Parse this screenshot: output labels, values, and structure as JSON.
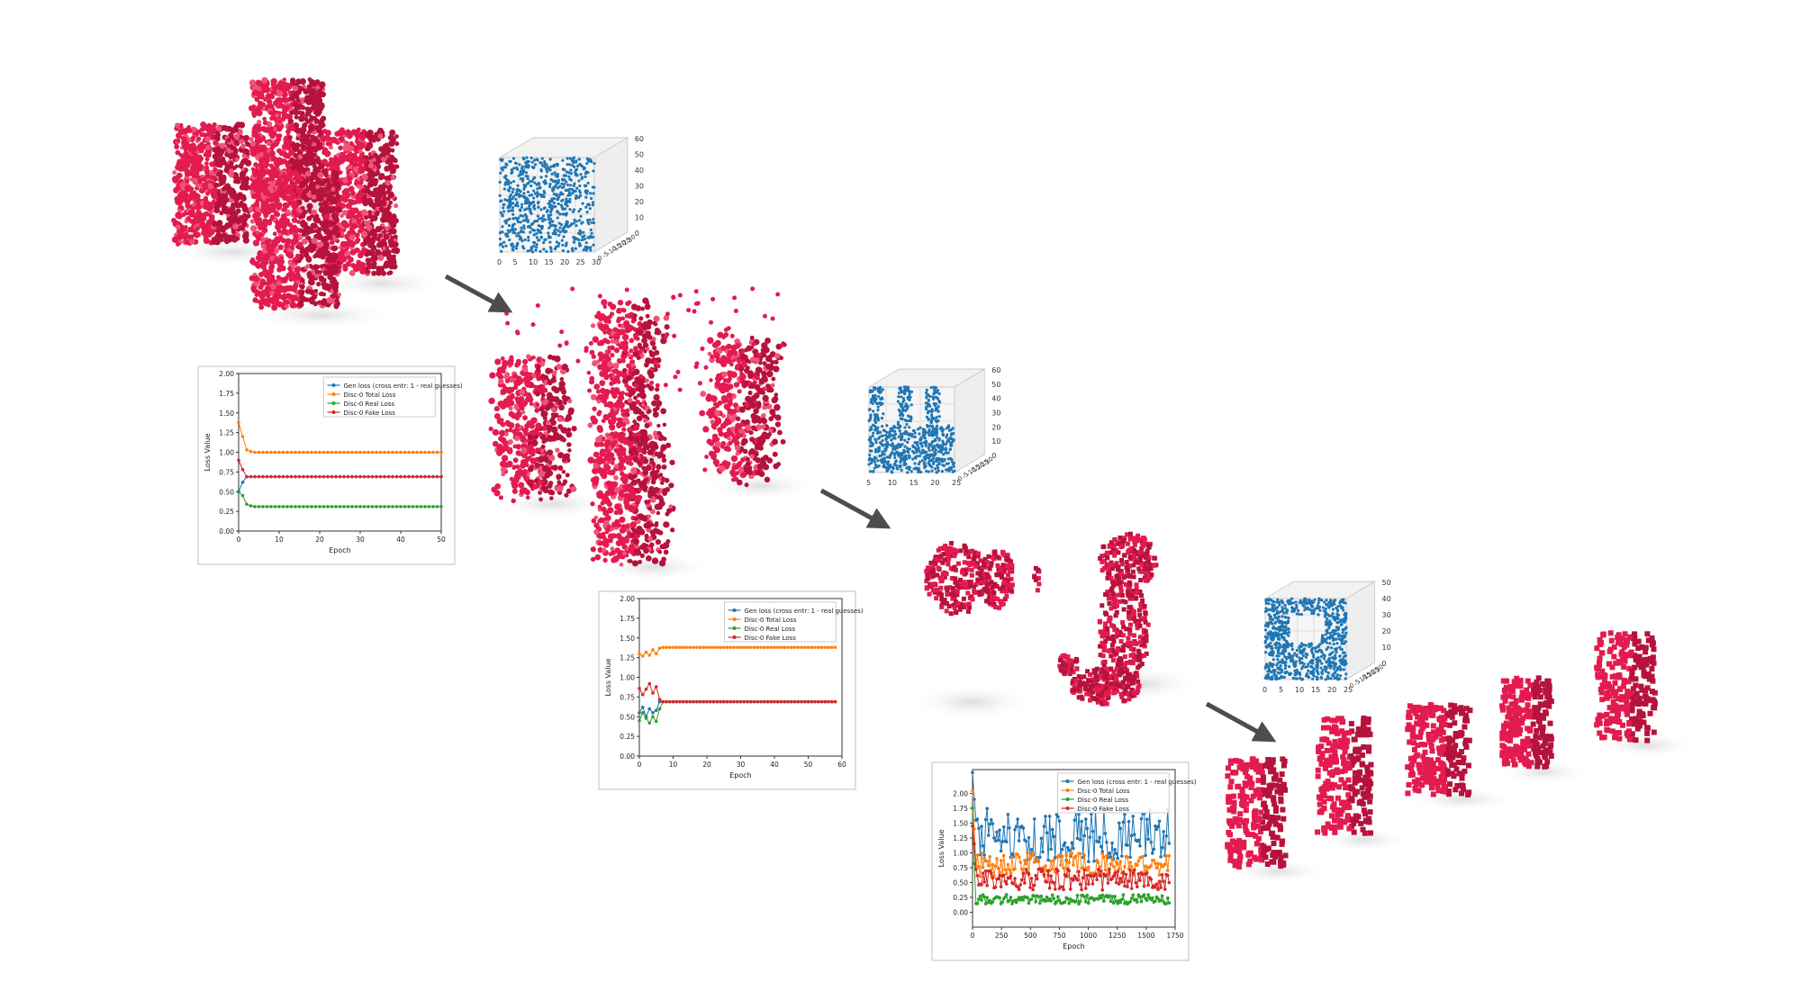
{
  "colors": {
    "voxel": "#e31b4f",
    "voxel_dark": "#b5123c",
    "voxel_light": "#f05278",
    "scatter": "#1f77b4",
    "arrow": "#4d4d4d",
    "series": [
      "#1f77b4",
      "#ff7f0e",
      "#2ca02c",
      "#d62728"
    ]
  },
  "panels": [
    {
      "voxel": "Four voxel towers (training target)",
      "scatter_ticks_z": [
        "60",
        "50",
        "40",
        "30",
        "20",
        "10",
        "0"
      ],
      "scatter_ticks_x": [
        "0",
        "5",
        "10",
        "15",
        "20",
        "25",
        "30"
      ],
      "scatter_ticks_y": [
        "0",
        "-5",
        "-10",
        "-15",
        "-20",
        "-25",
        "-30"
      ]
    },
    {
      "voxel": "Generated sparse towers",
      "scatter_ticks_z": [
        "60",
        "50",
        "40",
        "30",
        "20",
        "10",
        "0"
      ],
      "scatter_ticks_x": [
        "5",
        "10",
        "15",
        "20",
        "25"
      ],
      "scatter_ticks_y": [
        "0",
        "-5",
        "-10",
        "-15",
        "-20",
        "-25",
        "-30"
      ]
    },
    {
      "voxel": "Generated fragments",
      "scatter_ticks_z": [
        "50",
        "40",
        "30",
        "20",
        "10",
        "0"
      ],
      "scatter_ticks_x": [
        "0",
        "5",
        "10",
        "15",
        "20",
        "25"
      ],
      "scatter_ticks_y": [
        "0",
        "-5",
        "-10",
        "-15",
        "-20",
        "-25",
        "-30"
      ]
    }
  ],
  "chart_data": [
    {
      "type": "line",
      "xlabel": "Epoch",
      "ylabel": "Loss Value",
      "ylim": [
        0,
        2.0
      ],
      "xlim": [
        0,
        50
      ],
      "xticks": [
        "0",
        "10",
        "20",
        "30",
        "40",
        "50"
      ],
      "yticks": [
        "0.00",
        "0.25",
        "0.50",
        "0.75",
        "1.00",
        "1.25",
        "1.50",
        "1.75",
        "2.00"
      ],
      "legend_position": "top-right",
      "series": [
        {
          "name": "Gen loss (cross entr: 1 - real guesses)",
          "x": [
            0,
            1,
            2,
            3,
            4,
            5,
            10,
            20,
            30,
            40,
            50
          ],
          "y": [
            0.5,
            0.62,
            0.69,
            0.69,
            0.69,
            0.69,
            0.69,
            0.69,
            0.69,
            0.69,
            0.69
          ]
        },
        {
          "name": "Disc-0 Total Loss",
          "x": [
            0,
            1,
            2,
            3,
            4,
            5,
            10,
            20,
            30,
            40,
            50
          ],
          "y": [
            1.38,
            1.2,
            1.03,
            1.01,
            1.0,
            1.0,
            1.0,
            1.0,
            1.0,
            1.0,
            1.0
          ]
        },
        {
          "name": "Disc-0 Real Loss",
          "x": [
            0,
            1,
            2,
            3,
            4,
            5,
            10,
            20,
            30,
            40,
            50
          ],
          "y": [
            0.5,
            0.45,
            0.34,
            0.32,
            0.31,
            0.31,
            0.31,
            0.31,
            0.31,
            0.31,
            0.31
          ]
        },
        {
          "name": "Disc-0 Fake Loss",
          "x": [
            0,
            1,
            2,
            3,
            4,
            5,
            10,
            20,
            30,
            40,
            50
          ],
          "y": [
            0.9,
            0.78,
            0.69,
            0.69,
            0.69,
            0.69,
            0.69,
            0.69,
            0.69,
            0.69,
            0.69
          ]
        }
      ]
    },
    {
      "type": "line",
      "xlabel": "Epoch",
      "ylabel": "Loss Value",
      "ylim": [
        0,
        2.0
      ],
      "xlim": [
        0,
        60
      ],
      "xticks": [
        "0",
        "10",
        "20",
        "30",
        "40",
        "50",
        "60"
      ],
      "yticks": [
        "0.00",
        "0.25",
        "0.50",
        "0.75",
        "1.00",
        "1.25",
        "1.50",
        "1.75",
        "2.00"
      ],
      "legend_position": "top-right",
      "series": [
        {
          "name": "Gen loss (cross entr: 1 - real guesses)",
          "x": [
            0,
            1,
            2,
            3,
            4,
            5,
            6,
            7,
            8,
            10,
            20,
            30,
            40,
            50,
            58
          ],
          "y": [
            0.55,
            0.62,
            0.5,
            0.6,
            0.55,
            0.58,
            0.69,
            0.69,
            0.69,
            0.69,
            0.69,
            0.69,
            0.69,
            0.69,
            0.69
          ]
        },
        {
          "name": "Disc-0 Total Loss",
          "x": [
            0,
            1,
            2,
            3,
            4,
            5,
            6,
            7,
            8,
            10,
            20,
            30,
            40,
            50,
            58
          ],
          "y": [
            1.3,
            1.27,
            1.32,
            1.28,
            1.35,
            1.3,
            1.37,
            1.38,
            1.38,
            1.38,
            1.38,
            1.38,
            1.38,
            1.38,
            1.38
          ]
        },
        {
          "name": "Disc-0 Real Loss",
          "x": [
            0,
            1,
            2,
            3,
            4,
            5,
            6,
            7,
            8,
            10,
            20,
            30,
            40,
            50,
            58
          ],
          "y": [
            0.45,
            0.55,
            0.48,
            0.42,
            0.5,
            0.44,
            0.6,
            0.69,
            0.69,
            0.69,
            0.69,
            0.69,
            0.69,
            0.69,
            0.69
          ]
        },
        {
          "name": "Disc-0 Fake Loss",
          "x": [
            0,
            1,
            2,
            3,
            4,
            5,
            6,
            7,
            8,
            10,
            20,
            30,
            40,
            50,
            58
          ],
          "y": [
            0.86,
            0.78,
            0.85,
            0.92,
            0.8,
            0.88,
            0.72,
            0.69,
            0.69,
            0.69,
            0.69,
            0.69,
            0.69,
            0.69,
            0.69
          ]
        }
      ]
    },
    {
      "type": "line",
      "xlabel": "Epoch",
      "ylabel": "Loss Value",
      "ylim": [
        -0.25,
        2.4
      ],
      "xlim": [
        0,
        1750
      ],
      "xticks": [
        "0",
        "250",
        "500",
        "750",
        "1000",
        "1250",
        "1500",
        "1750"
      ],
      "yticks": [
        "0.00",
        "0.25",
        "0.50",
        "0.75",
        "1.00",
        "1.25",
        "1.50",
        "1.75",
        "2.00"
      ],
      "legend_position": "top-right",
      "series": [
        {
          "name": "Gen loss (cross entr: 1 - real guesses)",
          "base": 1.3,
          "noise": 0.45
        },
        {
          "name": "Disc-0 Total Loss",
          "base": 0.8,
          "noise": 0.2
        },
        {
          "name": "Disc-0 Real Loss",
          "base": 0.22,
          "noise": 0.08
        },
        {
          "name": "Disc-0 Fake Loss",
          "base": 0.55,
          "noise": 0.18
        }
      ]
    }
  ]
}
